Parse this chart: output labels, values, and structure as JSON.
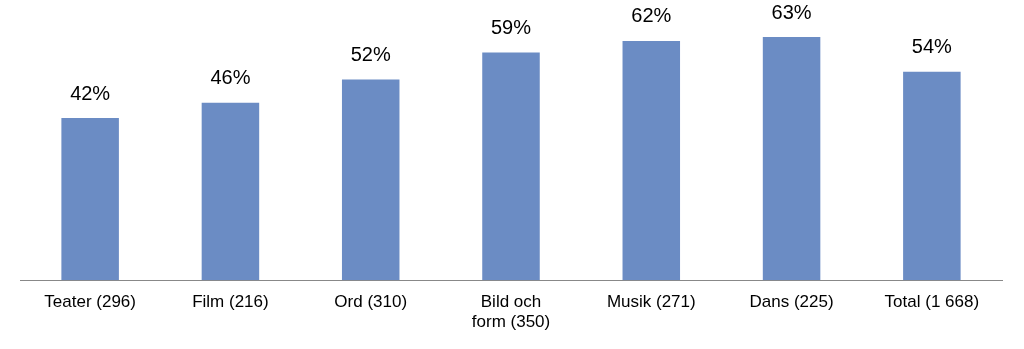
{
  "chart_data": {
    "type": "bar",
    "categories": [
      "Teater (296)",
      "Film (216)",
      "Ord (310)",
      "Bild och form (350)",
      "Musik (271)",
      "Dans (225)",
      "Total (1 668)"
    ],
    "values": [
      42,
      46,
      52,
      59,
      62,
      63,
      54
    ],
    "value_labels": [
      "42%",
      "46%",
      "52%",
      "59%",
      "62%",
      "63%",
      "54%"
    ],
    "color": "#6b8cc4",
    "grid": false,
    "legend": false
  }
}
